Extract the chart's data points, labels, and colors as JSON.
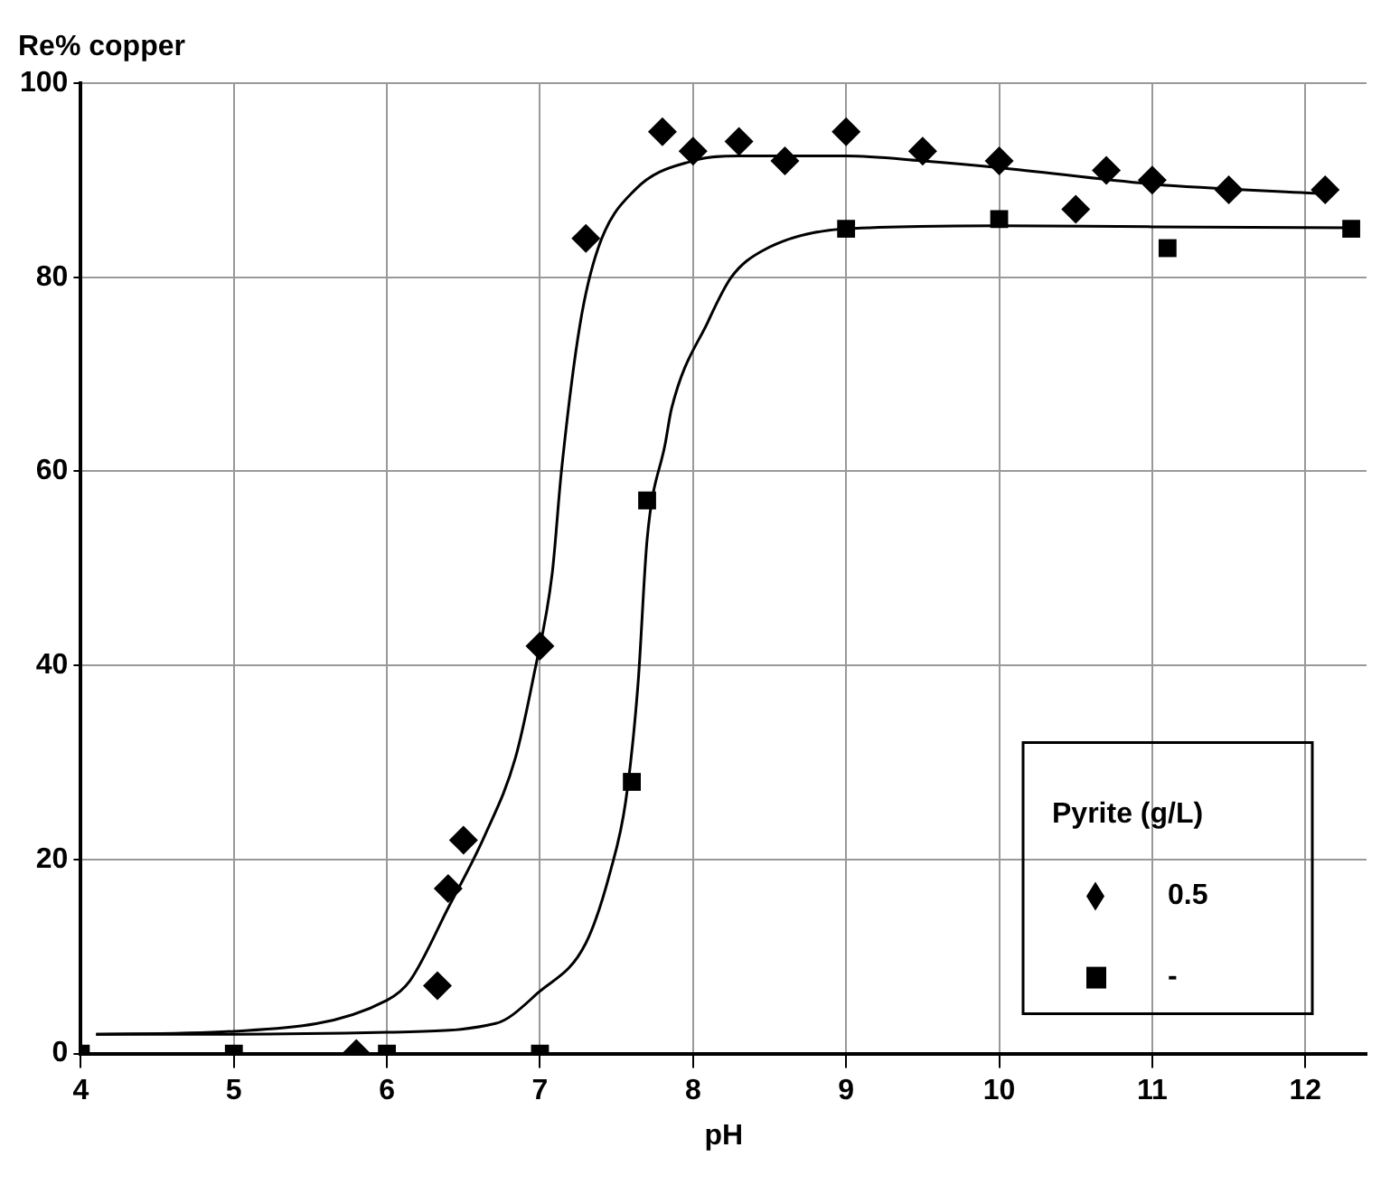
{
  "chart_data": {
    "type": "scatter",
    "xlabel": "pH",
    "ylabel": "Re% copper",
    "legend_title": "Pyrite (g/L)",
    "xlim": [
      4,
      12.4
    ],
    "xticks": [
      4,
      5,
      6,
      7,
      8,
      9,
      10,
      11,
      12
    ],
    "ylim": [
      0,
      100
    ],
    "yticks": [
      0,
      20,
      40,
      60,
      80,
      100
    ],
    "grid": true,
    "legend": "bottom right",
    "series": [
      {
        "name": "0.5",
        "marker": "diamond",
        "color": "#000000",
        "x": [
          5.8,
          6.33,
          6.4,
          6.5,
          7.0,
          7.3,
          7.8,
          8.0,
          8.3,
          8.6,
          9.0,
          9.5,
          10.0,
          10.5,
          10.7,
          11.0,
          11.5,
          12.13
        ],
        "values": [
          0,
          7,
          17,
          22,
          42,
          84,
          95,
          93,
          94,
          92,
          95,
          93,
          92,
          87,
          91,
          90,
          89,
          89
        ]
      },
      {
        "name": "-",
        "marker": "square",
        "color": "#000000",
        "x": [
          4,
          5,
          6,
          7,
          7.6,
          7.7,
          9.0,
          10.0,
          11.1,
          12.3
        ],
        "values": [
          0,
          0,
          0,
          0,
          28,
          57,
          85,
          86,
          83,
          85
        ]
      },
      {
        "type": "line",
        "marker": "none",
        "color": "#000000",
        "x": [
          4.1,
          5,
          6,
          6.15,
          6.4,
          6.64,
          6.84,
          6.96,
          7.08,
          7.14,
          7.26,
          7.38,
          7.62,
          8.0,
          8.3,
          9.0,
          9.5,
          10,
          11,
          12.13
        ],
        "values": [
          2,
          2.3,
          5.5,
          7.5,
          15,
          22.5,
          30.5,
          39,
          49.5,
          60,
          75,
          83,
          89,
          92,
          92.5,
          92.5,
          92,
          91.3,
          89.6,
          88.6
        ]
      },
      {
        "type": "line",
        "marker": "none",
        "color": "#000000",
        "x": [
          4.1,
          5,
          6,
          6.71,
          6.99,
          7.3,
          7.46,
          7.56,
          7.64,
          7.7,
          7.82,
          7.86,
          8.1,
          8.25,
          8.45,
          9.0,
          10,
          11,
          12.3
        ],
        "values": [
          2,
          2,
          2.2,
          3.1,
          6.3,
          11.4,
          18.8,
          26,
          38,
          53,
          63,
          66.5,
          75.5,
          80,
          82.7,
          85,
          85.3,
          85.2,
          85.1
        ]
      }
    ]
  }
}
